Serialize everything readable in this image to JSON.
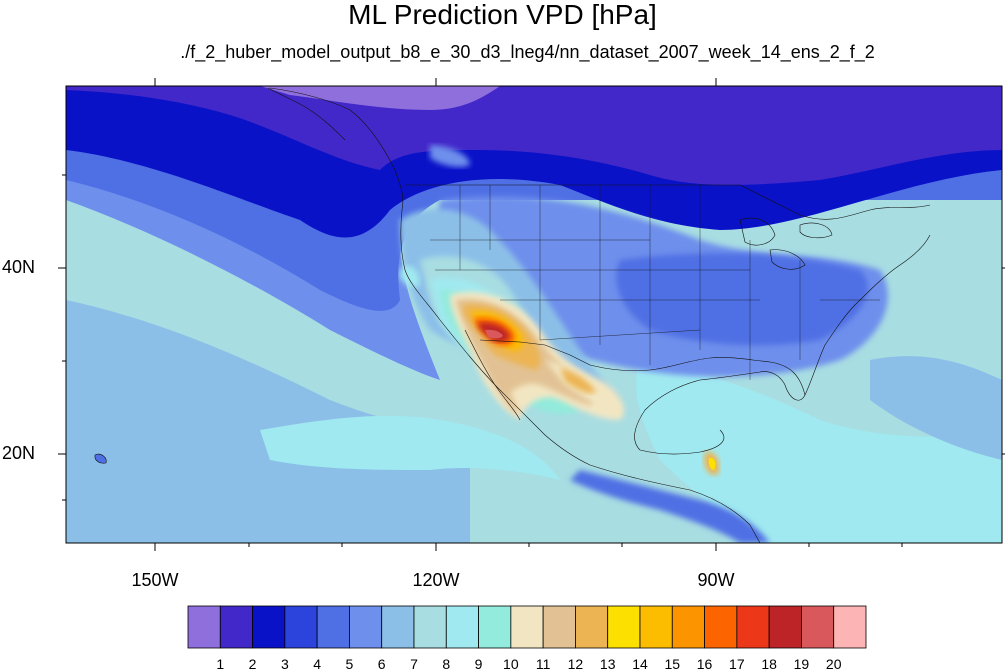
{
  "title": "ML Prediction VPD [hPa]",
  "subtitle": "./f_2_huber_model_output_b8_e_30_d3_lneg4/nn_dataset_2007_week_14_ens_2_f_2",
  "axes": {
    "lat_labels": [
      "40N",
      "20N"
    ],
    "lon_labels": [
      "150W",
      "120W",
      "90W"
    ]
  },
  "colorbar": {
    "labels": [
      "1",
      "2",
      "3",
      "4",
      "5",
      "6",
      "7",
      "8",
      "9",
      "10",
      "11",
      "12",
      "13",
      "14",
      "15",
      "16",
      "17",
      "18",
      "19",
      "20"
    ],
    "colors": [
      "#8f6fdc",
      "#4328c9",
      "#0a12c8",
      "#2c44dc",
      "#4f6fe4",
      "#6e8fec",
      "#8cbfe8",
      "#a8dde2",
      "#a0e9f0",
      "#92ebdc",
      "#f2e6c2",
      "#e2c294",
      "#ecb452",
      "#fce000",
      "#fcbc00",
      "#fc9400",
      "#fc6400",
      "#ec3818",
      "#bc2428",
      "#d8585c",
      "#fcb4b4"
    ]
  },
  "map": {
    "projection": "cylindrical equidistant",
    "lon_range": [
      -160,
      -60
    ],
    "lat_range": [
      10,
      59
    ],
    "grid_lat_lines": [
      20,
      40
    ],
    "grid_lon_lines": [
      -150,
      -120,
      -90
    ],
    "background_color": "#a8dde2"
  }
}
